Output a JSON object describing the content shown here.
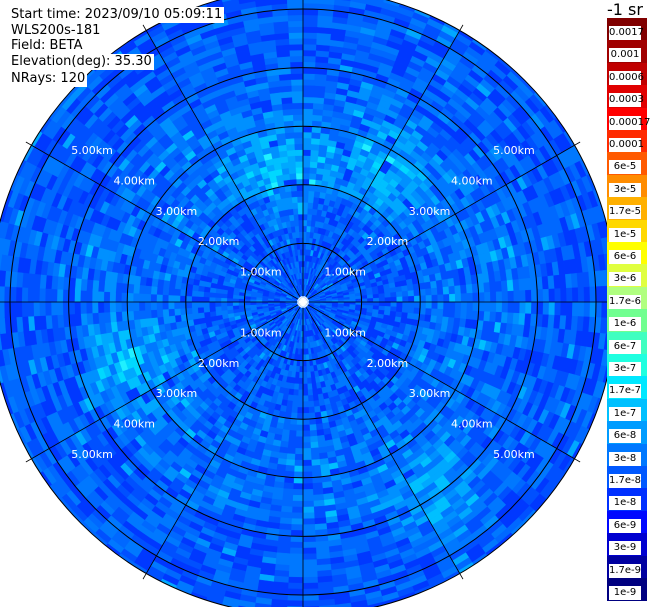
{
  "header": {
    "start_time": "Start time: 2023/09/10 05:09:11",
    "instrument": "WLS200s-181",
    "field": "Field: BETA",
    "elevation": "Elevation(deg): 35.30",
    "nrays": "NRays: 120"
  },
  "colorbar": {
    "unit_label": "-1 sr",
    "colors": [
      "#800000",
      "#a00000",
      "#c00000",
      "#e00000",
      "#ff0000",
      "#ff2a00",
      "#ff5a00",
      "#ff8c00",
      "#ffb000",
      "#ffd800",
      "#ffff00",
      "#e0ff40",
      "#b0ff80",
      "#70ff90",
      "#40ffc0",
      "#20ffe0",
      "#00e8ff",
      "#00c0ff",
      "#009cff",
      "#0078ff",
      "#0058ff",
      "#0030ff",
      "#0008ff",
      "#0000d0",
      "#0000a0",
      "#000080"
    ],
    "tick_labels": [
      "0.0017",
      "0.001",
      "0.0006",
      "0.0003",
      "0.00017",
      "0.0001",
      "6e-5",
      "3e-5",
      "1.7e-5",
      "1e-5",
      "6e-6",
      "3e-6",
      "1.7e-6",
      "1e-6",
      "6e-7",
      "3e-7",
      "1.7e-7",
      "1e-7",
      "6e-8",
      "3e-8",
      "1.7e-8",
      "1e-8",
      "6e-9",
      "3e-9",
      "1.7e-9",
      "1e-9"
    ]
  },
  "chart_data": {
    "type": "heatmap",
    "projection": "polar",
    "field": "BETA",
    "n_rays": 120,
    "elevation_deg": 35.3,
    "range_rings_km": [
      1,
      2,
      3,
      4,
      5
    ],
    "range_max_km": 5.35,
    "ring_labels": [
      "1.00km",
      "2.00km",
      "3.00km",
      "4.00km",
      "5.00km"
    ],
    "radial_lines_every_deg": 30,
    "dominant_value_range": [
      "1e-8",
      "1.7e-7"
    ],
    "typical_value": "3e-8",
    "features": [
      {
        "azimuth_deg": 30,
        "range_km": 2.6,
        "value": "1.7e-7"
      },
      {
        "azimuth_deg": 250,
        "range_km": 3.2,
        "value": "1.7e-7"
      },
      {
        "azimuth_deg": 350,
        "range_km": 2.3,
        "value": "1e-7"
      },
      {
        "azimuth_deg": 145,
        "range_km": 4.0,
        "value": "1e-7"
      }
    ]
  }
}
